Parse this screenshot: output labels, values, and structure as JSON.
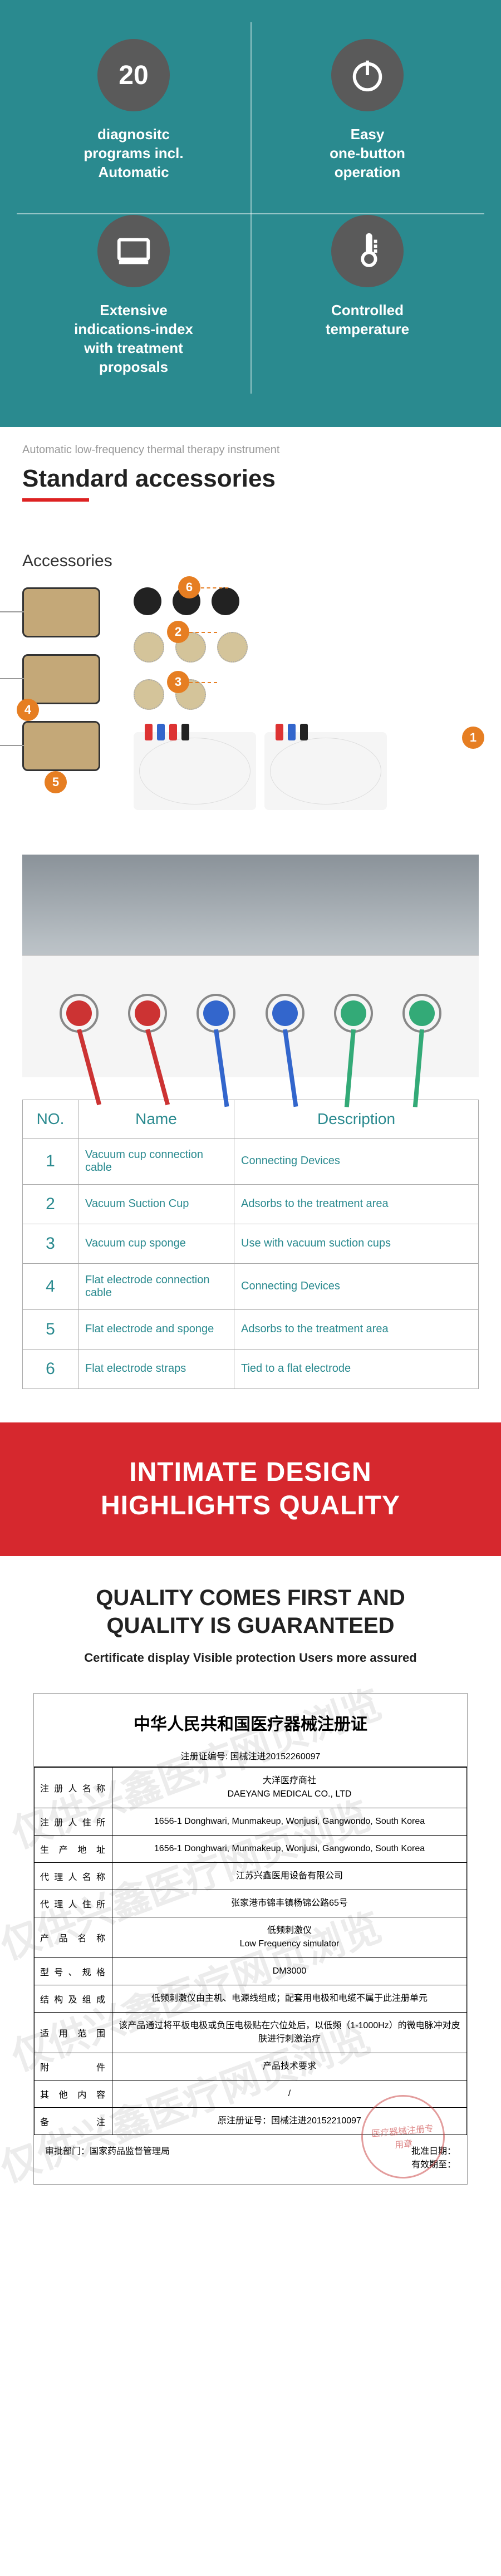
{
  "features": {
    "items": [
      {
        "icon": "num20",
        "label": "diagnositc\nprograms incl.\nAutomatic"
      },
      {
        "icon": "power",
        "label": "Easy\none-button\noperation"
      },
      {
        "icon": "screen",
        "label": "Extensive\nindications-index\nwith treatment\nproposals"
      },
      {
        "icon": "thermo",
        "label": "Controlled\ntemperature"
      }
    ],
    "num20_text": "20",
    "bg_color": "#2a8a8f",
    "icon_bg": "#5a5a5a"
  },
  "accessories_section": {
    "subtitle": "Automatic low-frequency thermal therapy instrument",
    "title": "Standard accessories",
    "diagram_label": "Accessories",
    "numbers": [
      "1",
      "2",
      "3",
      "4",
      "5",
      "6"
    ]
  },
  "accessories_table": {
    "headers": [
      "NO.",
      "Name",
      "Description"
    ],
    "rows": [
      [
        "1",
        "Vacuum cup connection cable",
        "Connecting Devices"
      ],
      [
        "2",
        "Vacuum Suction Cup",
        "Adsorbs to the treatment area"
      ],
      [
        "3",
        "Vacuum cup sponge",
        "Use with vacuum suction cups"
      ],
      [
        "4",
        "Flat electrode connection cable",
        "Connecting Devices"
      ],
      [
        "5",
        "Flat electrode and sponge",
        "Adsorbs to the treatment area"
      ],
      [
        "6",
        "Flat electrode straps",
        "Tied to a flat electrode"
      ]
    ]
  },
  "red_banner": {
    "line1": "INTIMATE DESIGN",
    "line2": "HIGHLIGHTS QUALITY"
  },
  "quality": {
    "title_line1": "QUALITY COMES FIRST AND",
    "title_line2": "QUALITY IS GUARANTEED",
    "subtitle": "Certificate display Visible protection Users more assured"
  },
  "certificate": {
    "title": "中华人民共和国医疗器械注册证",
    "reg_no_label": "注册证编号: 国械注进20152260097",
    "watermark": "仅供兴鑫医疗网页浏览",
    "rows": [
      {
        "label": "注册人名称",
        "value": "大洋医疗商社\nDAEYANG MEDICAL CO., LTD"
      },
      {
        "label": "注册人住所",
        "value": "1656-1 Donghwari, Munmakeup, Wonjusi, Gangwondo, South Korea"
      },
      {
        "label": "生产地址",
        "value": "1656-1 Donghwari, Munmakeup, Wonjusi, Gangwondo, South Korea"
      },
      {
        "label": "代理人名称",
        "value": "江苏兴鑫医用设备有限公司"
      },
      {
        "label": "代理人住所",
        "value": "张家港市锦丰镇杨锦公路65号"
      },
      {
        "label": "产品名称",
        "value": "低频刺激仪\nLow Frequency simulator"
      },
      {
        "label": "型号、规格",
        "value": "DM3000"
      },
      {
        "label": "结构及组成",
        "value": "低频刺激仪由主机、电源线组成；配套用电极和电缆不属于此注册单元"
      },
      {
        "label": "适用范围",
        "value": "该产品通过将平板电极或负压电极贴在穴位处后，以低频（1-1000Hz）的微电脉冲对皮肤进行刺激治疗"
      },
      {
        "label": "附件",
        "value": "产品技术要求"
      },
      {
        "label": "其他内容",
        "value": "/"
      },
      {
        "label": "备注",
        "value": "原注册证号：国械注进20152210097"
      }
    ],
    "footer_left": "审批部门：国家药品监督管理局",
    "footer_right_1": "批准日期：",
    "footer_right_2": "有效期至：",
    "stamp_text": "医疗器械注册专用章"
  }
}
